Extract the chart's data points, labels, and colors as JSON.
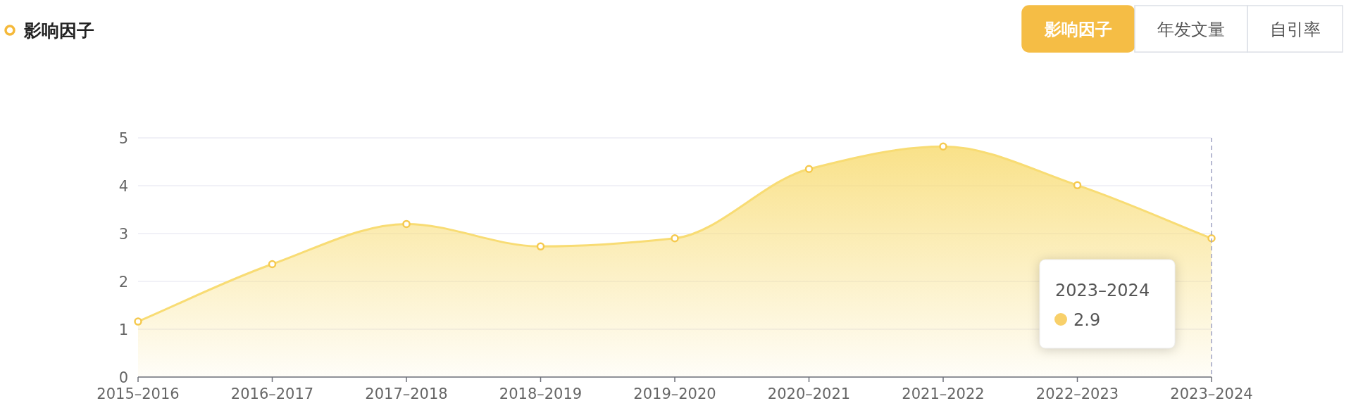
{
  "chart_data": {
    "type": "area",
    "title": "影响因子",
    "categories": [
      "2015–2016",
      "2016–2017",
      "2017–2018",
      "2018–2019",
      "2019–2020",
      "2020–2021",
      "2021–2022",
      "2022–2023",
      "2023–2024"
    ],
    "series": [
      {
        "color": "#f8dc74",
        "values": [
          1.16,
          2.36,
          3.2,
          2.73,
          2.9,
          4.35,
          4.82,
          4.01,
          2.9
        ]
      }
    ],
    "ylim": [
      0,
      5
    ],
    "yticks": [
      0,
      1,
      2,
      3,
      4,
      5
    ],
    "grid": "y",
    "marker": "circle",
    "line_style": "solid",
    "ref_lines": [
      {
        "axis": "x",
        "value": "2023–2024",
        "line_style": "dashed",
        "color": "#9fa3c4"
      }
    ],
    "annotations": [
      "影响因子",
      "年发文量",
      "自引率",
      "2023–2024",
      "2.9"
    ]
  }
}
